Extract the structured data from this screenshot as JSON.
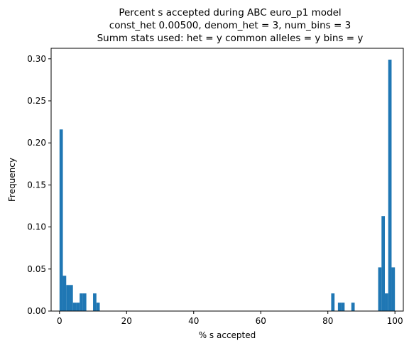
{
  "chart_data": {
    "type": "bar",
    "title_lines": [
      "Percent s accepted during ABC euro_p1 model",
      "const_het 0.00500, denom_het = 3, num_bins = 3",
      "Summ stats used: het = y common alleles = y bins = y"
    ],
    "xlabel": "% s accepted",
    "ylabel": "Frequency",
    "xlim": [
      -2.5,
      102.5
    ],
    "ylim": [
      0,
      0.3125
    ],
    "xticks": [
      0,
      20,
      40,
      60,
      80,
      100
    ],
    "yticks": [
      0.0,
      0.05,
      0.1,
      0.15,
      0.2,
      0.25,
      0.3
    ],
    "ytick_labels": [
      "0.00",
      "0.05",
      "0.10",
      "0.15",
      "0.20",
      "0.25",
      "0.30"
    ],
    "bar_color": "#1f77b4",
    "bin_width": 1,
    "bins": [
      {
        "x": 0,
        "value": 0.216
      },
      {
        "x": 1,
        "value": 0.042
      },
      {
        "x": 2,
        "value": 0.031
      },
      {
        "x": 3,
        "value": 0.031
      },
      {
        "x": 4,
        "value": 0.01
      },
      {
        "x": 5,
        "value": 0.01
      },
      {
        "x": 6,
        "value": 0.021
      },
      {
        "x": 7,
        "value": 0.021
      },
      {
        "x": 10,
        "value": 0.021
      },
      {
        "x": 11,
        "value": 0.01
      },
      {
        "x": 81,
        "value": 0.021
      },
      {
        "x": 83,
        "value": 0.01
      },
      {
        "x": 84,
        "value": 0.01
      },
      {
        "x": 87,
        "value": 0.01
      },
      {
        "x": 95,
        "value": 0.052
      },
      {
        "x": 96,
        "value": 0.113
      },
      {
        "x": 97,
        "value": 0.021
      },
      {
        "x": 98,
        "value": 0.299
      },
      {
        "x": 99,
        "value": 0.052
      }
    ]
  }
}
